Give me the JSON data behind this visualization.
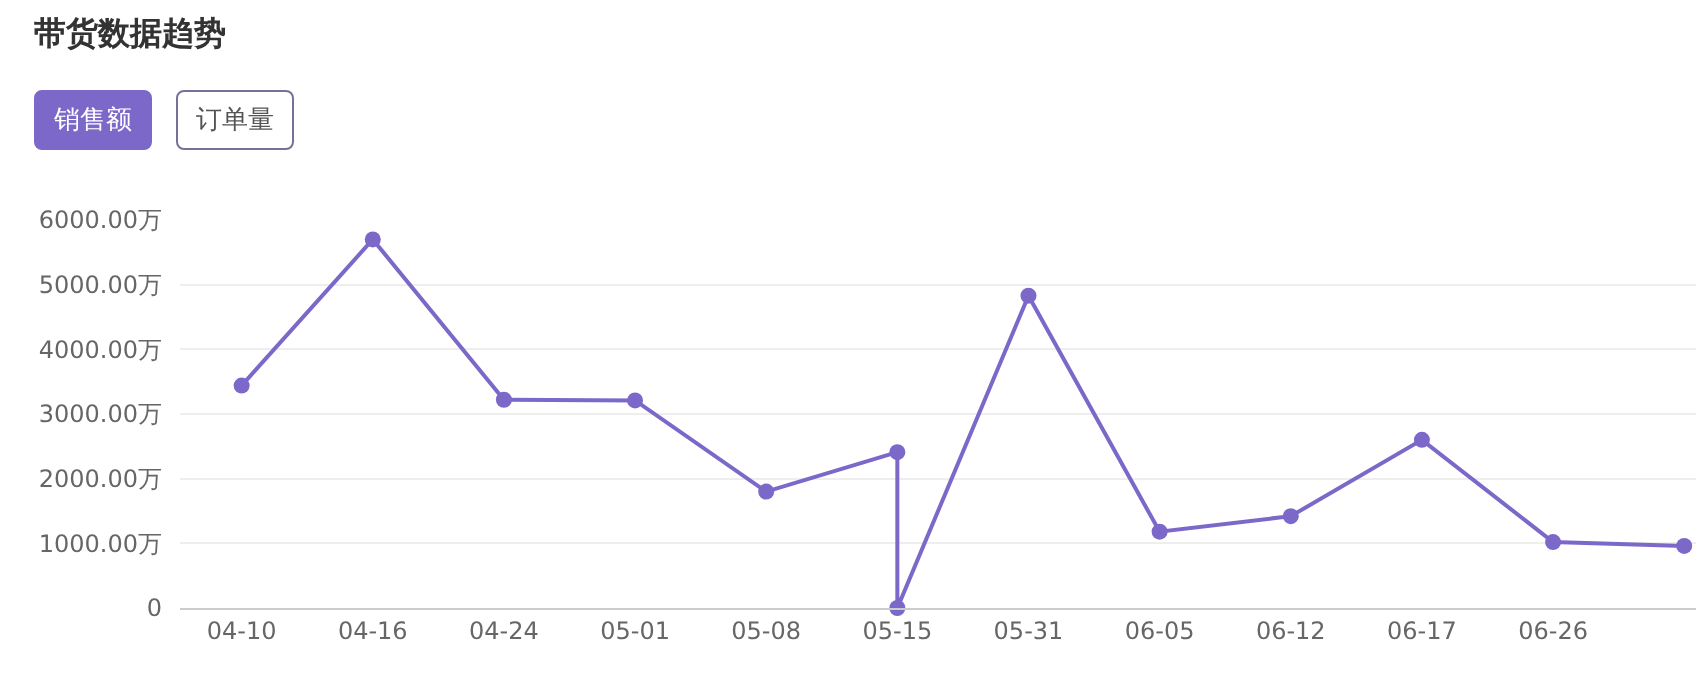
{
  "chart_data": {
    "type": "line",
    "title": "带货数据趋势",
    "annotations": [
      "销售额",
      "订单量"
    ],
    "categories": [
      "04-10",
      "04-16",
      "04-24",
      "05-01",
      "05-08",
      "05-15",
      "05-31",
      "06-05",
      "06-12",
      "06-17",
      "06-26",
      null
    ],
    "series": [
      {
        "color": "#7b68c8",
        "x": [
          "04-10",
          "04-16",
          "04-24",
          "05-01",
          "05-08",
          "05-15",
          "05-15",
          "05-31",
          "06-05",
          "06-12",
          "06-17",
          "06-26",
          null
        ],
        "values": [
          3440,
          5700,
          3220,
          3210,
          1800,
          2410,
          0,
          4830,
          1180,
          1420,
          2600,
          1020,
          960
        ]
      }
    ],
    "ylim": [
      0,
      6000
    ],
    "yticks": [
      0,
      {
        "value": 1000,
        "label": "1000.00万"
      },
      {
        "value": 2000,
        "label": "2000.00万"
      },
      {
        "value": 3000,
        "label": "3000.00万"
      },
      {
        "value": 4000,
        "label": "4000.00万"
      },
      {
        "value": 5000,
        "label": "5000.00万"
      },
      {
        "value": 6000,
        "label": "6000.00万"
      }
    ],
    "grid": "y",
    "marker": "circle",
    "line_style": "solid",
    "legend": false
  }
}
